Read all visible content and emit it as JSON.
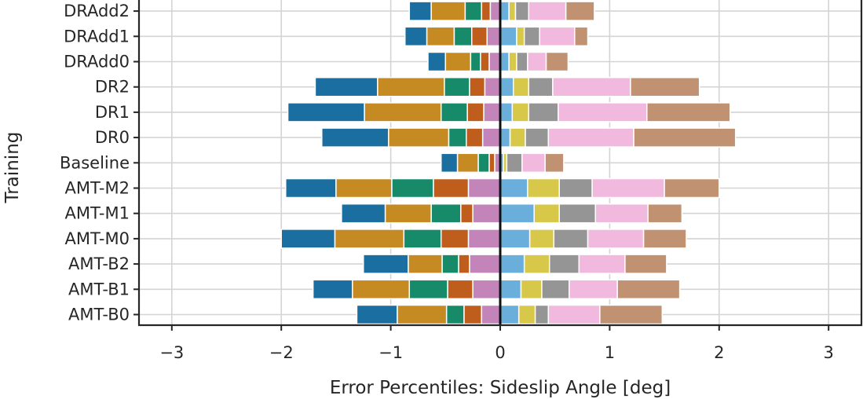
{
  "chart_data": {
    "type": "bar",
    "orientation": "horizontal",
    "stacked_diverging": true,
    "title": "",
    "xlabel": "Error Percentiles: Sideslip Angle [deg]",
    "ylabel": "Training",
    "xlim": [
      -3.3,
      3.3
    ],
    "xticks": [
      -3,
      -2,
      -1,
      0,
      1,
      2,
      3
    ],
    "xtick_labels": [
      "−3",
      "−2",
      "−1",
      "0",
      "1",
      "2",
      "3"
    ],
    "grid": true,
    "legend": "none",
    "categories": [
      "DRAdd2",
      "DRAdd1",
      "DRAdd0",
      "DR2",
      "DR1",
      "DR0",
      "Baseline",
      "AMT-M2",
      "AMT-M1",
      "AMT-M0",
      "AMT-B2",
      "AMT-B1",
      "AMT-B0"
    ],
    "negative_colors": [
      "#1a6fa0",
      "#c68a22",
      "#178a6a",
      "#bf5e1c",
      "#c384b9"
    ],
    "positive_colors": [
      "#6aaedb",
      "#d8c84a",
      "#959595",
      "#f2b9de",
      "#c09272"
    ],
    "negative_segments": [
      [
        -0.83,
        -0.63,
        -0.32,
        -0.17,
        -0.09,
        0
      ],
      [
        -0.87,
        -0.67,
        -0.42,
        -0.26,
        -0.12,
        0
      ],
      [
        -0.66,
        -0.5,
        -0.27,
        -0.18,
        -0.1,
        0
      ],
      [
        -1.69,
        -1.12,
        -0.51,
        -0.28,
        -0.14,
        0
      ],
      [
        -1.94,
        -1.24,
        -0.54,
        -0.3,
        -0.15,
        0
      ],
      [
        -1.63,
        -1.02,
        -0.47,
        -0.31,
        -0.16,
        0
      ],
      [
        -0.54,
        -0.39,
        -0.2,
        -0.1,
        -0.05,
        0
      ],
      [
        -1.96,
        -1.5,
        -0.99,
        -0.61,
        -0.29,
        0
      ],
      [
        -1.45,
        -1.05,
        -0.63,
        -0.36,
        -0.25,
        0
      ],
      [
        -2.0,
        -1.51,
        -0.88,
        -0.54,
        -0.29,
        0
      ],
      [
        -1.25,
        -0.84,
        -0.53,
        -0.38,
        -0.28,
        0
      ],
      [
        -1.71,
        -1.35,
        -0.83,
        -0.48,
        -0.25,
        0
      ],
      [
        -1.31,
        -0.94,
        -0.49,
        -0.33,
        -0.17,
        0
      ]
    ],
    "positive_segments": [
      [
        0,
        0.08,
        0.14,
        0.26,
        0.6,
        0.86
      ],
      [
        0,
        0.15,
        0.22,
        0.36,
        0.68,
        0.8
      ],
      [
        0,
        0.08,
        0.15,
        0.25,
        0.42,
        0.62
      ],
      [
        0,
        0.12,
        0.26,
        0.48,
        1.19,
        1.82
      ],
      [
        0,
        0.11,
        0.26,
        0.53,
        1.34,
        2.1
      ],
      [
        0,
        0.09,
        0.23,
        0.44,
        1.22,
        2.15
      ],
      [
        0,
        0.03,
        0.06,
        0.2,
        0.41,
        0.58
      ],
      [
        0,
        0.25,
        0.54,
        0.84,
        1.5,
        2.0
      ],
      [
        0,
        0.31,
        0.54,
        0.87,
        1.35,
        1.66
      ],
      [
        0,
        0.27,
        0.49,
        0.8,
        1.31,
        1.7
      ],
      [
        0,
        0.22,
        0.45,
        0.72,
        1.14,
        1.52
      ],
      [
        0,
        0.19,
        0.38,
        0.63,
        1.07,
        1.64
      ],
      [
        0,
        0.17,
        0.32,
        0.44,
        0.91,
        1.48
      ]
    ]
  }
}
